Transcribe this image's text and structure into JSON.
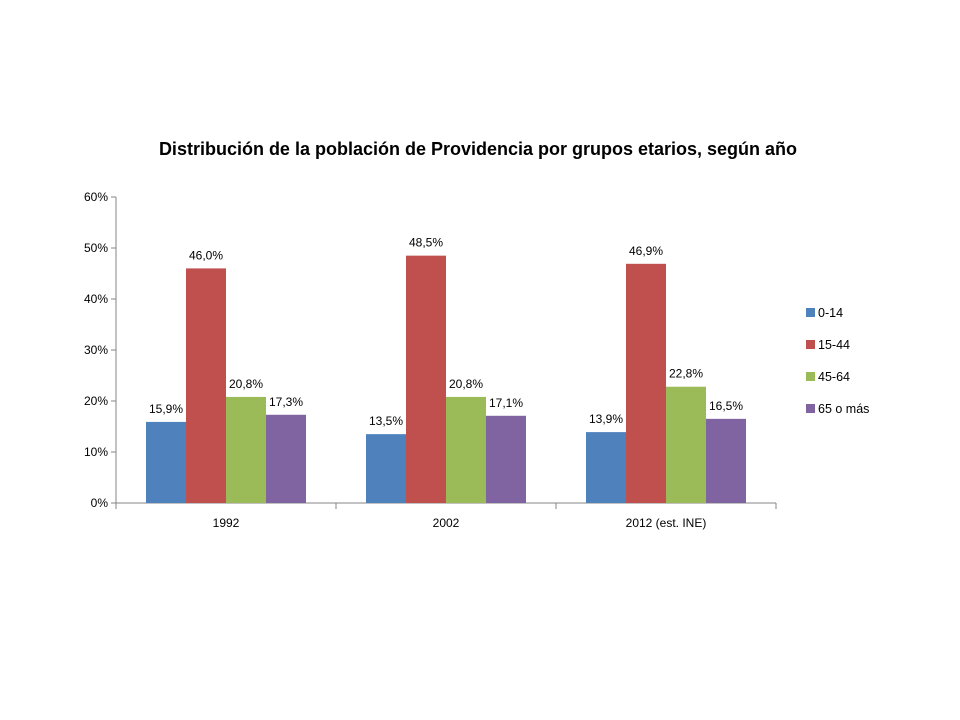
{
  "chart_data": {
    "type": "bar",
    "title": "Distribución de la población de Providencia por grupos etarios, según año",
    "xlabel": "",
    "ylabel": "",
    "categories": [
      "1992",
      "2002",
      "2012 (est. INE)"
    ],
    "series": [
      {
        "name": "0-14",
        "color": "#4F81BD",
        "values": [
          15.9,
          13.5,
          13.9
        ],
        "labels": [
          "15,9%",
          "13,5%",
          "13,9%"
        ]
      },
      {
        "name": "15-44",
        "color": "#C0504D",
        "values": [
          46.0,
          48.5,
          46.9
        ],
        "labels": [
          "46,0%",
          "48,5%",
          "46,9%"
        ]
      },
      {
        "name": "45-64",
        "color": "#9BBB59",
        "values": [
          20.8,
          20.8,
          22.8
        ],
        "labels": [
          "20,8%",
          "20,8%",
          "22,8%"
        ]
      },
      {
        "name": "65 o más",
        "color": "#8064A2",
        "values": [
          17.3,
          17.1,
          16.5
        ],
        "labels": [
          "17,3%",
          "17,1%",
          "16,5%"
        ]
      }
    ],
    "ylim": [
      0,
      60
    ],
    "yticks": [
      0,
      10,
      20,
      30,
      40,
      50,
      60
    ],
    "ytick_labels": [
      "0%",
      "10%",
      "20%",
      "30%",
      "40%",
      "50%",
      "60%"
    ],
    "grid": false,
    "legend_position": "right"
  }
}
